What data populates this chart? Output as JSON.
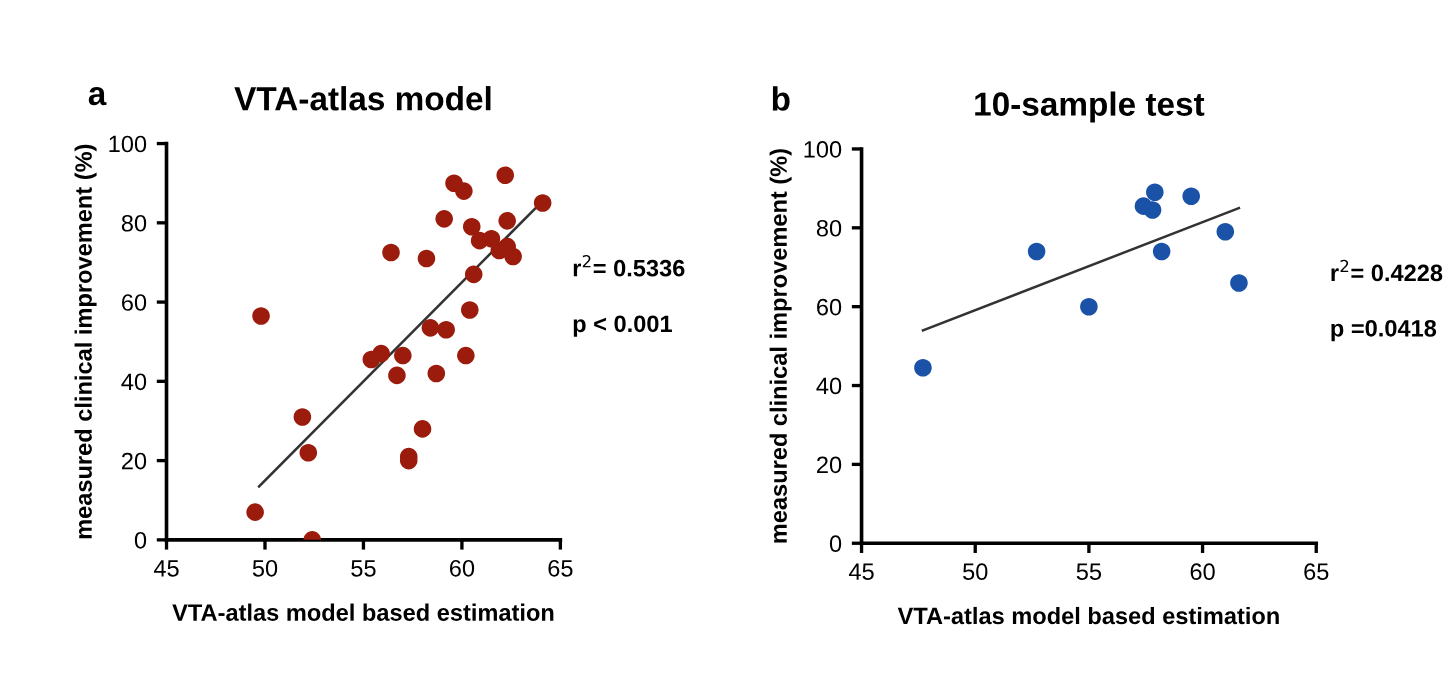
{
  "chart_data": [
    {
      "type": "scatter",
      "title": "VTA-atlas model",
      "xlabel": "VTA-atlas model based estimation",
      "ylabel": "measured clinical improvement (%)",
      "xlim": [
        45,
        65
      ],
      "xticks": [
        45,
        50,
        55,
        60,
        65
      ],
      "ylim": [
        0,
        100
      ],
      "yticks": [
        0,
        20,
        40,
        60,
        80,
        100
      ],
      "grid": false,
      "legend": false,
      "marker": "circle",
      "annotations": [
        "a",
        "r$^{2}$= 0.5336",
        "p < 0.001"
      ],
      "series": [
        {
          "color": "#9b1c0c",
          "x": [
            49.5,
            49.8,
            51.9,
            52.2,
            52.4,
            55.4,
            55.9,
            56.4,
            56.7,
            57.0,
            57.3,
            57.3,
            58.0,
            58.2,
            58.4,
            58.7,
            59.2,
            59.1,
            59.6,
            60.1,
            60.2,
            60.4,
            60.5,
            60.6,
            60.9,
            61.5,
            61.9,
            62.2,
            62.3,
            62.3,
            62.6,
            64.1
          ],
          "values": [
            7,
            56.5,
            31,
            22,
            0,
            45.5,
            47,
            72.5,
            41.5,
            46.5,
            21,
            20,
            28,
            71,
            53.5,
            42,
            53,
            81,
            90,
            88,
            46.5,
            58,
            79,
            67,
            75.5,
            76,
            73,
            92,
            80.5,
            74,
            71.5,
            85
          ]
        },
        {
          "type": "line",
          "color": "#333333",
          "marker": "none",
          "x": [
            49.7,
            64.0
          ],
          "values": [
            13.5,
            85
          ]
        }
      ]
    },
    {
      "type": "scatter",
      "title": "10-sample test",
      "xlabel": "VTA-atlas model based estimation",
      "ylabel": "measured clinical improvement (%)",
      "xlim": [
        45,
        65
      ],
      "xticks": [
        45,
        50,
        55,
        60,
        65
      ],
      "ylim": [
        0,
        100
      ],
      "yticks": [
        0,
        20,
        40,
        60,
        80,
        100
      ],
      "grid": false,
      "legend": false,
      "marker": "circle",
      "annotations": [
        "b",
        "r$^{2}$= 0.4228",
        "p =0.0418"
      ],
      "series": [
        {
          "color": "#1a52a8",
          "x": [
            47.7,
            52.7,
            55.0,
            57.4,
            57.8,
            57.9,
            58.2,
            59.5,
            61.0,
            61.6
          ],
          "values": [
            44.5,
            74,
            60,
            85.5,
            84.5,
            89,
            74,
            88,
            79,
            66
          ]
        },
        {
          "type": "line",
          "color": "#333333",
          "marker": "none",
          "x": [
            47.7,
            61.6
          ],
          "values": [
            54,
            85
          ]
        }
      ]
    }
  ]
}
